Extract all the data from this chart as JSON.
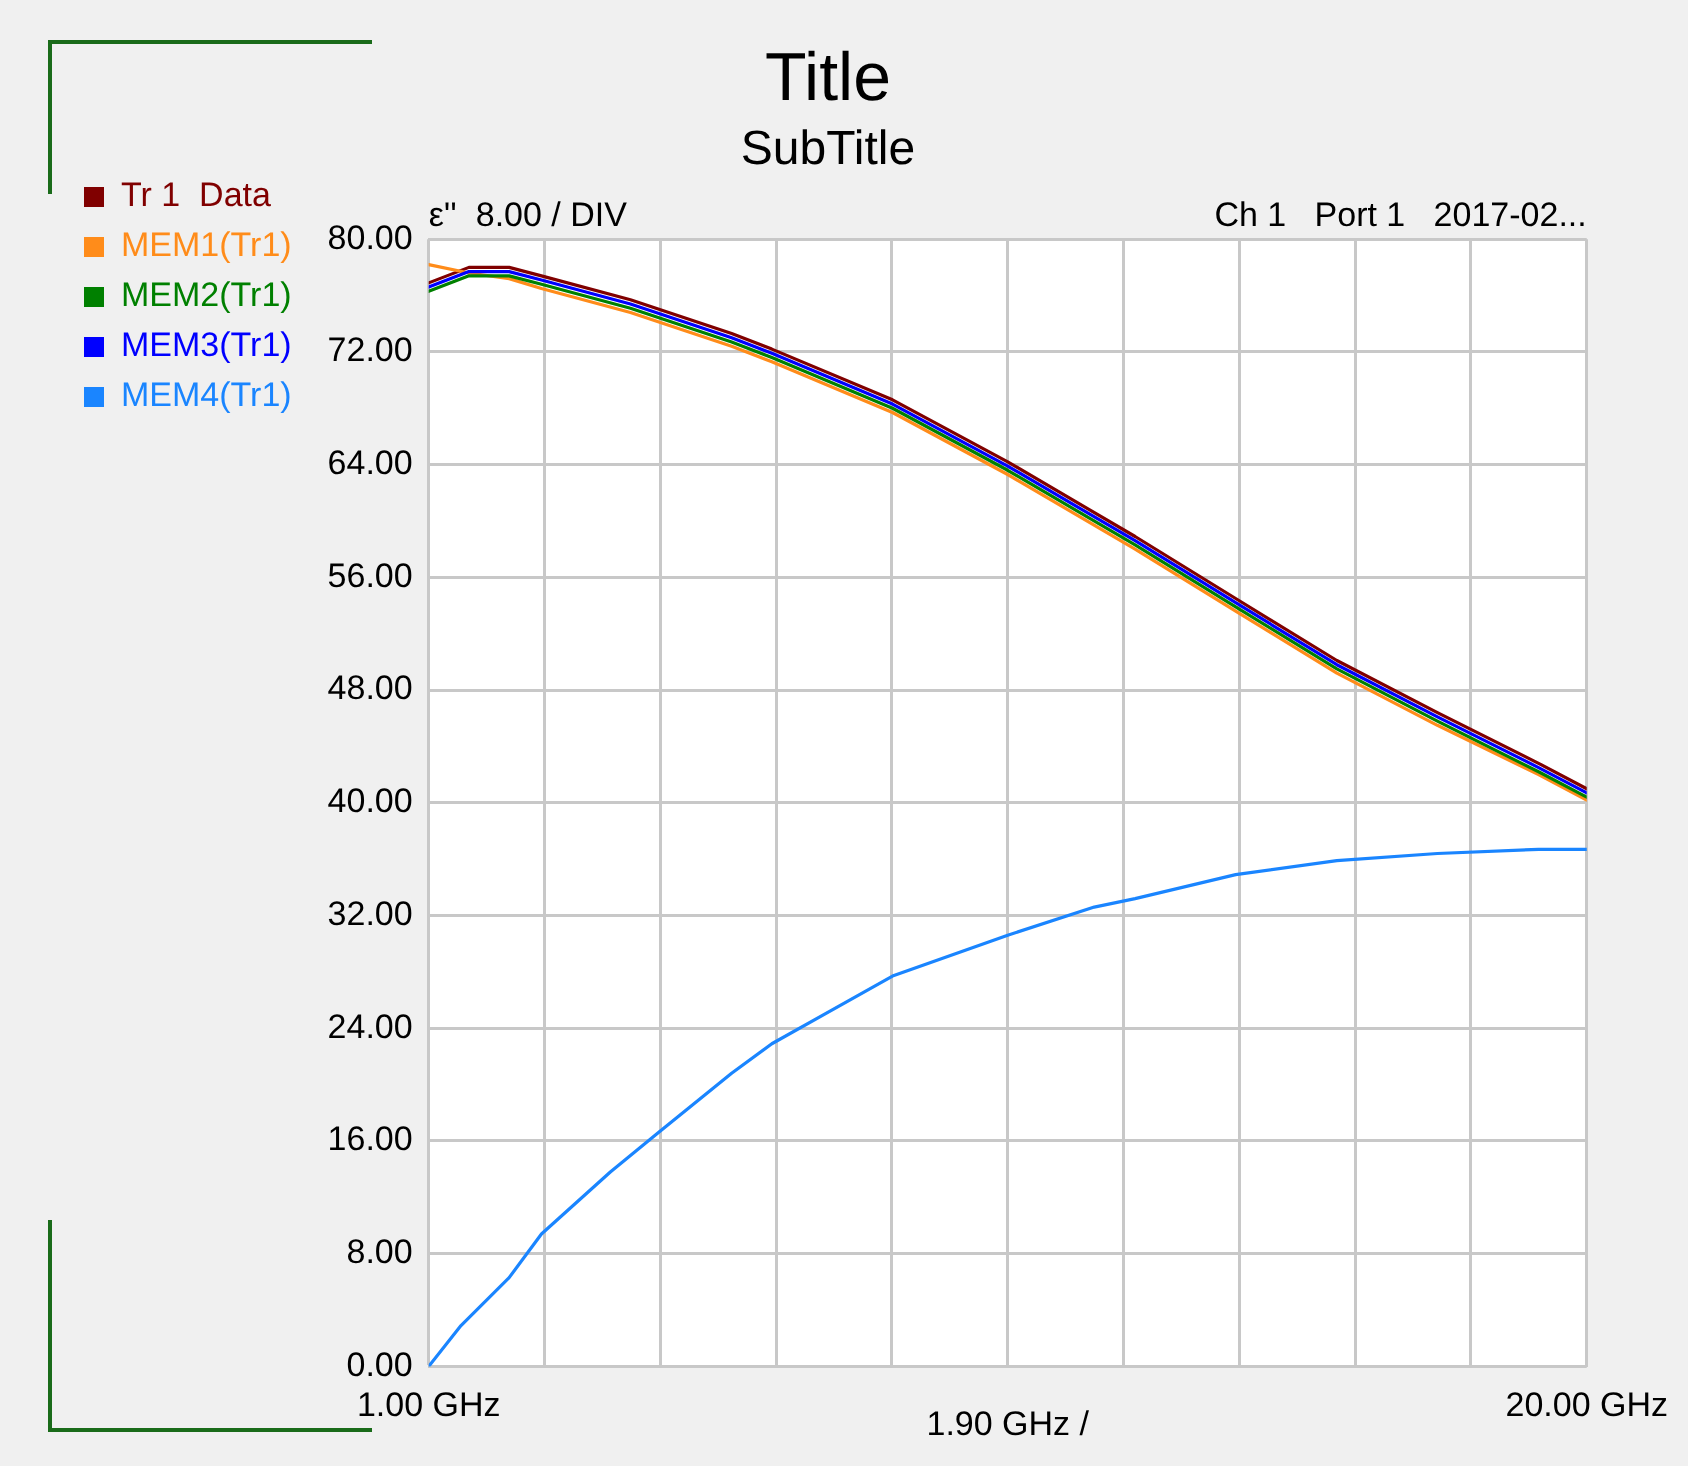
{
  "chart_data": {
    "type": "line",
    "title": "Title",
    "subtitle": "SubTitle",
    "annotations": [
      "ε''  8.00 / DIV",
      "Ch 1   Port 1   2017-02..."
    ],
    "xlabel": "1.90 GHz /",
    "x": [
      1.0,
      1.66,
      2.32,
      2.85,
      4.31,
      5.97,
      6.63,
      8.61,
      10.5,
      12.59,
      14.24,
      15.9,
      17.55,
      19.21,
      20.0
    ],
    "series": [
      {
        "name": "Tr 1  Data",
        "color": "#800000",
        "values": [
          76.9,
          78.0,
          78.0,
          77.4,
          75.7,
          73.3,
          72.2,
          68.6,
          64.2,
          58.9,
          54.5,
          50.1,
          46.4,
          42.8,
          41.0
        ]
      },
      {
        "name": "MEM1(Tr1)",
        "color": "#ff8c1a",
        "values": [
          78.2,
          77.6,
          77.2,
          76.5,
          74.8,
          72.4,
          71.3,
          67.7,
          63.3,
          58.0,
          53.6,
          49.2,
          45.5,
          42.0,
          40.2
        ]
      },
      {
        "name": "MEM2(Tr1)",
        "color": "#008000",
        "values": [
          76.3,
          77.4,
          77.4,
          76.8,
          75.1,
          72.7,
          71.6,
          68.0,
          63.6,
          58.3,
          53.9,
          49.5,
          45.8,
          42.2,
          40.4
        ]
      },
      {
        "name": "MEM3(Tr1)",
        "color": "#0000ff",
        "values": [
          76.6,
          77.7,
          77.7,
          77.1,
          75.4,
          73.0,
          71.9,
          68.3,
          63.9,
          58.6,
          54.2,
          49.8,
          46.1,
          42.5,
          40.7
        ]
      },
      {
        "name": "MEM4(Tr1)",
        "color": "#1a85ff",
        "x": [
          1.0,
          1.53,
          2.32,
          2.85,
          3.98,
          4.77,
          5.97,
          6.63,
          8.61,
          10.5,
          11.92,
          12.59,
          14.24,
          15.9,
          17.55,
          19.21,
          20.0
        ],
        "values": [
          0.0,
          2.9,
          6.3,
          9.4,
          13.8,
          16.6,
          20.8,
          22.9,
          27.7,
          30.6,
          32.6,
          33.2,
          34.9,
          35.9,
          36.4,
          36.7,
          36.7
        ]
      }
    ],
    "xlim": [
      1,
      20
    ],
    "xticks": [
      {
        "value": 1,
        "label": "1.00 GHz"
      },
      {
        "value": 2.9,
        "label": null
      },
      {
        "value": 4.8,
        "label": null
      },
      {
        "value": 6.7,
        "label": null
      },
      {
        "value": 8.6,
        "label": null
      },
      {
        "value": 10.5,
        "label": null
      },
      {
        "value": 12.4,
        "label": null
      },
      {
        "value": 14.3,
        "label": null
      },
      {
        "value": 16.2,
        "label": null
      },
      {
        "value": 18.1,
        "label": null
      },
      {
        "value": 20,
        "label": "20.00 GHz"
      }
    ],
    "ylim": [
      0,
      80
    ],
    "yticks": [
      {
        "value": 0,
        "label": "0.00"
      },
      {
        "value": 8,
        "label": "8.00"
      },
      {
        "value": 16,
        "label": "16.00"
      },
      {
        "value": 24,
        "label": "24.00"
      },
      {
        "value": 32,
        "label": "32.00"
      },
      {
        "value": 40,
        "label": "40.00"
      },
      {
        "value": 48,
        "label": "48.00"
      },
      {
        "value": 56,
        "label": "56.00"
      },
      {
        "value": 64,
        "label": "64.00"
      },
      {
        "value": 72,
        "label": "72.00"
      },
      {
        "value": 80,
        "label": "80.00"
      }
    ],
    "grid": true,
    "legend": "left",
    "marker": "none",
    "line_style": "solid"
  }
}
